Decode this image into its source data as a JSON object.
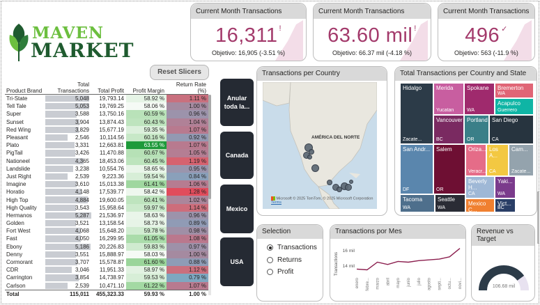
{
  "brand": {
    "line1": "MAVEN",
    "line2": "MARKET"
  },
  "kpis": [
    {
      "title": "Current Month Transactions",
      "value": "16,311",
      "mark": "!",
      "goal": "Objetivo: 16,905 (-3.51 %)"
    },
    {
      "title": "Current Month Transactions",
      "value": "63.60 mil",
      "mark": "!",
      "goal": "Objetivo: 66.37 mil (-4.18 %)"
    },
    {
      "title": "Current Month Transactions",
      "value": "496",
      "mark": "✓",
      "goal": "Objetivo: 563 (-11.9 %)"
    }
  ],
  "reset_label": "Reset Slicers",
  "country_buttons": [
    "Anular toda la...",
    "Canada",
    "Mexico",
    "USA"
  ],
  "table": {
    "headers": [
      "Product Brand",
      "Total Transactions",
      "Total Profit",
      "Profit Margin",
      "Return Rate (%)"
    ],
    "rows": [
      {
        "brand": "Tri-State",
        "tx": "5,048",
        "profit": "19,793.14",
        "margin": "58.92 %",
        "rr": "1.11 %",
        "txv": 5048,
        "mc": "#e6f4e6",
        "rc": "#c9707e"
      },
      {
        "brand": "Tell Tale",
        "tx": "5,053",
        "profit": "19,769.25",
        "margin": "58.06 %",
        "rr": "1.00 %",
        "txv": 5053,
        "mc": "#f5faf5",
        "rc": "#a58aa0"
      },
      {
        "brand": "Super",
        "tx": "3,588",
        "profit": "13,750.16",
        "margin": "60.59 %",
        "rr": "0.96 %",
        "txv": 3588,
        "mc": "#b9e2b9",
        "rc": "#9c93ab"
      },
      {
        "brand": "Sunset",
        "tx": "3,904",
        "tx2": "",
        "profit": "13,874.43",
        "margin": "60.43 %",
        "rr": "1.04 %",
        "txv": 3904,
        "mc": "#bee4be",
        "rc": "#b08197"
      },
      {
        "brand": "Red Wing",
        "tx": "3,829",
        "profit": "15,677.19",
        "margin": "59.35 %",
        "rr": "1.07 %",
        "txv": 3829,
        "mc": "#dcf0dc",
        "rc": "#b87a8f"
      },
      {
        "brand": "Pleasant",
        "tx": "2,546",
        "profit": "10,114.56",
        "margin": "60.16 %",
        "rr": "0.92 %",
        "txv": 2546,
        "mc": "#c7e8c7",
        "rc": "#9399b2"
      },
      {
        "brand": "Plato",
        "tx": "3,331",
        "profit": "12,663.81",
        "margin": "63.55 %",
        "rr": "1.07 %",
        "txv": 3331,
        "mc": "#1e9a3a",
        "rc": "#b87a8f"
      },
      {
        "brand": "PigTail",
        "tx": "3,426",
        "profit": "11,470.88",
        "margin": "60.67 %",
        "rr": "1.05 %",
        "txv": 3426,
        "mc": "#b6e1b6",
        "rc": "#b47e93"
      },
      {
        "brand": "Nationeel",
        "tx": "4,365",
        "profit": "18,453.06",
        "margin": "60.45 %",
        "rr": "1.19 %",
        "txv": 4365,
        "mc": "#bde4bd",
        "rc": "#d6626f"
      },
      {
        "brand": "Landslide",
        "tx": "3,238",
        "profit": "10,554.76",
        "margin": "58.65 %",
        "rr": "0.95 %",
        "txv": 3238,
        "mc": "#e9f5e9",
        "rc": "#9a95ad"
      },
      {
        "brand": "Just Right",
        "tx": "2,539",
        "profit": "9,223.36",
        "margin": "59.54 %",
        "rr": "0.84 %",
        "txv": 2539,
        "mc": "#d7eed7",
        "rc": "#8aa0ba"
      },
      {
        "brand": "Imagine",
        "tx": "3,610",
        "profit": "15,013.38",
        "margin": "61.41 %",
        "rr": "1.06 %",
        "txv": 3610,
        "mc": "#9fd79f",
        "rc": "#b67c91"
      },
      {
        "brand": "Horatio",
        "tx": "4,148",
        "profit": "17,539.77",
        "margin": "58.42 %",
        "rr": "1.28 %",
        "txv": 4148,
        "mc": "#eef7ee",
        "rc": "#e14c5c"
      },
      {
        "brand": "High Top",
        "tx": "4,884",
        "profit": "19,600.05",
        "margin": "60.41 %",
        "rr": "1.02 %",
        "txv": 4884,
        "mc": "#bee4be",
        "rc": "#ab869b"
      },
      {
        "brand": "High Quality",
        "tx": "3,543",
        "profit": "15,958.64",
        "margin": "59.97 %",
        "rr": "1.14 %",
        "txv": 3543,
        "mc": "#cceacc",
        "rc": "#cd6d7b"
      },
      {
        "brand": "Hermanos",
        "tx": "5,287",
        "profit": "21,536.97",
        "margin": "58.63 %",
        "rr": "0.96 %",
        "txv": 5287,
        "mc": "#e9f5e9",
        "rc": "#9c93ab"
      },
      {
        "brand": "Golden",
        "tx": "3,521",
        "profit": "13,158.54",
        "margin": "58.73 %",
        "rr": "0.89 %",
        "txv": 3521,
        "mc": "#e7f4e7",
        "rc": "#909bb5"
      },
      {
        "brand": "Fort West",
        "tx": "4,068",
        "profit": "15,648.20",
        "margin": "59.78 %",
        "rr": "0.98 %",
        "txv": 4068,
        "mc": "#d1ecd1",
        "rc": "#a08fa6"
      },
      {
        "brand": "Fast",
        "tx": "4,050",
        "profit": "16,299.95",
        "margin": "61.05 %",
        "rr": "1.08 %",
        "txv": 4050,
        "mc": "#aadcaa",
        "rc": "#ba788d"
      },
      {
        "brand": "Ebony",
        "tx": "5,186",
        "profit": "20,226.83",
        "margin": "59.83 %",
        "rr": "0.97 %",
        "txv": 5186,
        "mc": "#d0ebd0",
        "rc": "#9e91a9"
      },
      {
        "brand": "Denny",
        "tx": "3,551",
        "profit": "15,888.97",
        "margin": "58.03 %",
        "rr": "1.00 %",
        "txv": 3551,
        "mc": "#f5faf5",
        "rc": "#a58aa0"
      },
      {
        "brand": "Cormorant",
        "tx": "3,707",
        "profit": "15,578.87",
        "margin": "61.60 %",
        "rr": "0.88 %",
        "txv": 3707,
        "mc": "#9ad59a",
        "rc": "#8e9cb6"
      },
      {
        "brand": "CDR",
        "tx": "3,046",
        "profit": "11,951.33",
        "margin": "58.97 %",
        "rr": "1.12 %",
        "txv": 3046,
        "mc": "#e2f2e2",
        "rc": "#ca6f7d"
      },
      {
        "brand": "Carrington",
        "tx": "3,854",
        "profit": "14,738.97",
        "margin": "59.53 %",
        "rr": "0.79 %",
        "txv": 3854,
        "mc": "#d7eed7",
        "rc": "#7ea7c0"
      },
      {
        "brand": "Carlson",
        "tx": "2,539",
        "profit": "10,471.10",
        "margin": "61.22 %",
        "rr": "1.07 %",
        "txv": 2539,
        "mc": "#a3d9a3",
        "rc": "#b87a8f"
      }
    ],
    "total": {
      "label": "Total",
      "tx": "115,011",
      "profit": "455,323.33",
      "margin": "59.93 %",
      "rr": "1.00 %"
    }
  },
  "map": {
    "title": "Transactions per Country",
    "region_label": "AMÉRICA DEL NORTE",
    "footer": "© 2025 TomTom, © 2025 Microsoft Corporation",
    "footer_terms": "Terms",
    "ms_logo": "Microsoft"
  },
  "treemap": {
    "title": "Total Transactions per Country and State",
    "cells": [
      {
        "name": "Hidalgo",
        "sub": "Zacate...",
        "color": "#2c3b48"
      },
      {
        "name": "Merida",
        "sub": "Yucatan",
        "color": "#c85ea0"
      },
      {
        "name": "Spokane",
        "sub": "WA",
        "color": "#9f2a6d"
      },
      {
        "name": "Bremerton",
        "sub": "WA",
        "color": "#e06576"
      },
      {
        "name": "Acapulco",
        "sub": "Guerrero",
        "color": "#0fb5a5"
      },
      {
        "name": "Vancouver",
        "sub": "BC",
        "color": "#7a2a61"
      },
      {
        "name": "Portland",
        "sub": "OR",
        "color": "#3a7f88"
      },
      {
        "name": "San Diego",
        "sub": "CA",
        "color": "#27343f"
      },
      {
        "name": "San Andr...",
        "sub": "DF",
        "color": "#5a86ad"
      },
      {
        "name": "Salem",
        "sub": "OR",
        "color": "#6e0f33"
      },
      {
        "name": "Oriza...",
        "sub": "Veracr...",
        "color": "#e56c88"
      },
      {
        "name": "Los A...",
        "sub": "CA",
        "color": "#f3c842"
      },
      {
        "name": "Cam...",
        "sub": "Zacate...",
        "color": "#94a3ad"
      },
      {
        "name": "Tacoma",
        "sub": "WA",
        "color": "#4e6f8c"
      },
      {
        "name": "Seattle",
        "sub": "WA",
        "color": "#2a2c35"
      },
      {
        "name": "Beverly H...",
        "sub": "CA",
        "color": "#9fb8d6"
      },
      {
        "name": "Yaki...",
        "sub": "WA",
        "color": "#7b3b8c"
      },
      {
        "name": "Mexico C...",
        "sub": "",
        "color": "#f08030"
      },
      {
        "name": "Vict...",
        "sub": "BC",
        "color": "#2a3e66"
      }
    ]
  },
  "selection": {
    "title": "Selection",
    "options": [
      {
        "label": "Transactions",
        "selected": true
      },
      {
        "label": "Returns",
        "selected": false
      },
      {
        "label": "Profit",
        "selected": false
      }
    ]
  },
  "monthly": {
    "title": "Transactions por Mes",
    "ylabel": "Transactions",
    "yticks": [
      "16 mil",
      "14 mil"
    ],
    "months": [
      "enero",
      "febre...",
      "marzo",
      "abril",
      "mayo",
      "junio",
      "julio",
      "agosto",
      "septi...",
      "octu...",
      "novi..."
    ],
    "values": [
      13.6,
      13.5,
      14.5,
      14.2,
      14.6,
      14.5,
      14.7,
      14.8,
      14.9,
      15.2,
      16.3
    ],
    "ylim": [
      13,
      17
    ]
  },
  "revenue": {
    "title": "Revenue vs Target",
    "value_label": "106.68 mil",
    "fill_fraction": 0.8,
    "fill_color": "#2c3b48",
    "track_color": "#e8e2f0"
  }
}
